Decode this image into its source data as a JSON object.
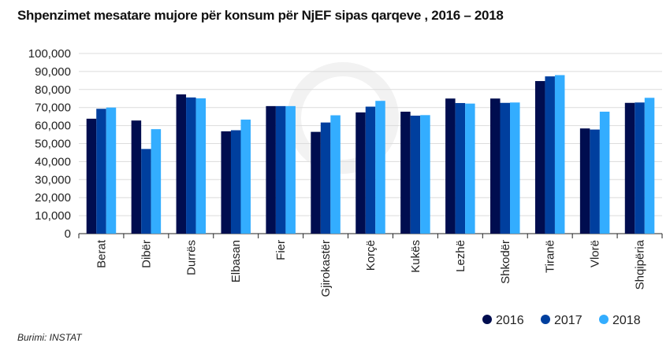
{
  "chart_data": {
    "type": "bar",
    "title": "Shpenzimet mesatare mujore për konsum për NjEF sipas qarqeve , 2016 – 2018",
    "xlabel": "",
    "ylabel": "",
    "ylim": [
      0,
      100000
    ],
    "yticks": [
      0,
      10000,
      20000,
      30000,
      40000,
      50000,
      60000,
      70000,
      80000,
      90000,
      100000
    ],
    "ytick_labels": [
      "0",
      "10,000",
      "20,000",
      "30,000",
      "40,000",
      "50,000",
      "60,000",
      "70,000",
      "80,000",
      "90,000",
      "100,000"
    ],
    "grid": true,
    "legend_position": "bottom-right",
    "categories": [
      "Berat",
      "Dibër",
      "Durrës",
      "Elbasan",
      "Fier",
      "Gjirokastër",
      "Korçë",
      "Kukës",
      "Lezhë",
      "Shkodër",
      "Tiranë",
      "Vlorë",
      "Shqipëria"
    ],
    "series": [
      {
        "name": "2016",
        "color": "#000d4f",
        "values": [
          63800,
          62800,
          77300,
          56800,
          70800,
          56500,
          67300,
          67700,
          75000,
          75000,
          84700,
          58400,
          72600
        ]
      },
      {
        "name": "2017",
        "color": "#003f9e",
        "values": [
          69300,
          47000,
          75600,
          57400,
          70800,
          61700,
          70500,
          65500,
          72500,
          72600,
          87300,
          57800,
          72800
        ]
      },
      {
        "name": "2018",
        "color": "#33adff",
        "values": [
          70000,
          58000,
          75100,
          63300,
          70800,
          65700,
          73700,
          65800,
          72200,
          72800,
          88000,
          67700,
          75400
        ]
      }
    ]
  },
  "source": "Burimi: INSTAT"
}
